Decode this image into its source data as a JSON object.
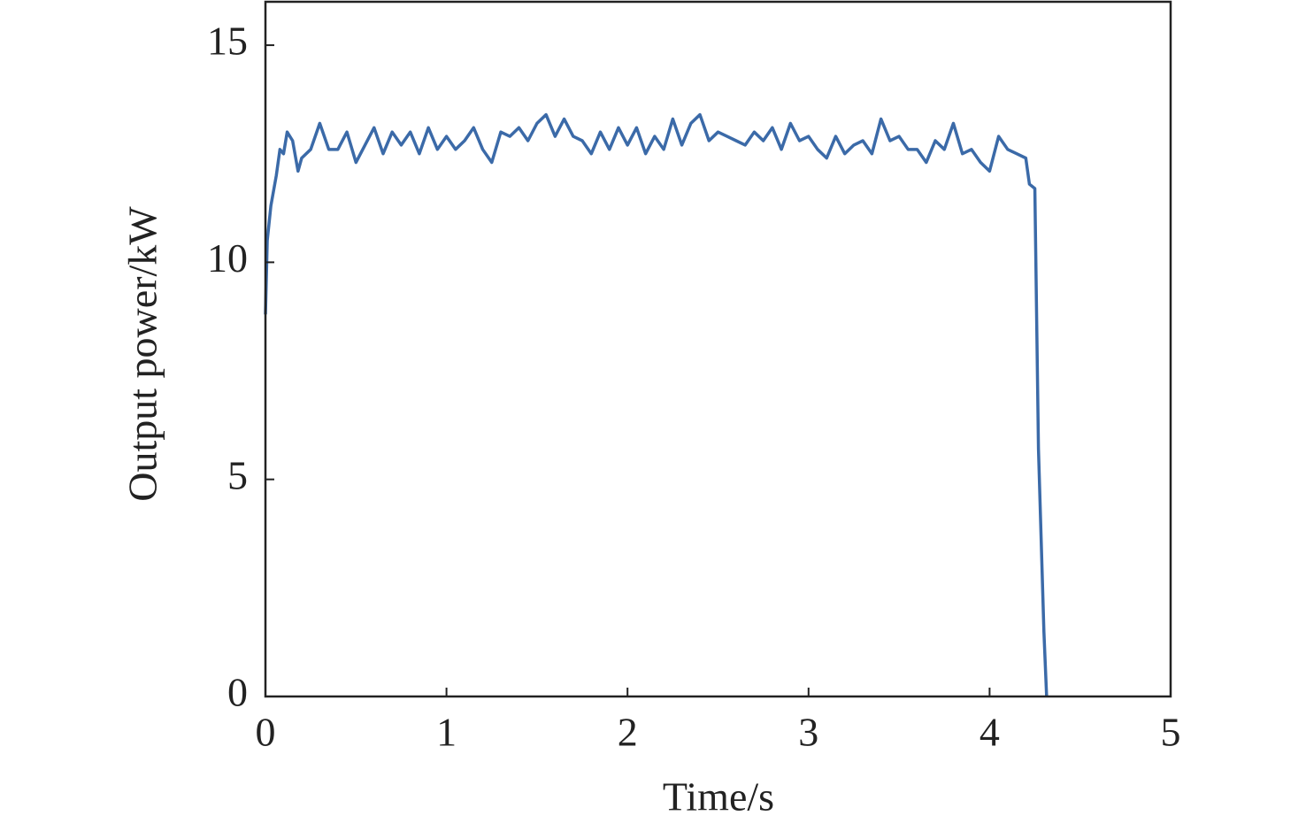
{
  "chart_data": {
    "type": "line",
    "xlabel": "Time/s",
    "ylabel": "Output power/kW",
    "xlim": [
      0,
      5
    ],
    "ylim": [
      0,
      16
    ],
    "xticks": [
      0,
      1,
      2,
      3,
      4,
      5
    ],
    "yticks": [
      0,
      5,
      10,
      15
    ],
    "series": [
      {
        "color": "#3b6aa8",
        "x": [
          0,
          0.01,
          0.03,
          0.06,
          0.08,
          0.1,
          0.12,
          0.15,
          0.18,
          0.2,
          0.25,
          0.3,
          0.35,
          0.4,
          0.45,
          0.5,
          0.55,
          0.6,
          0.65,
          0.7,
          0.75,
          0.8,
          0.85,
          0.9,
          0.95,
          1.0,
          1.05,
          1.1,
          1.15,
          1.2,
          1.25,
          1.3,
          1.35,
          1.4,
          1.45,
          1.5,
          1.55,
          1.6,
          1.65,
          1.7,
          1.75,
          1.8,
          1.85,
          1.9,
          1.95,
          2.0,
          2.05,
          2.1,
          2.15,
          2.2,
          2.25,
          2.3,
          2.35,
          2.4,
          2.45,
          2.5,
          2.55,
          2.6,
          2.65,
          2.7,
          2.75,
          2.8,
          2.85,
          2.9,
          2.95,
          3.0,
          3.05,
          3.1,
          3.15,
          3.2,
          3.25,
          3.3,
          3.35,
          3.4,
          3.45,
          3.5,
          3.55,
          3.6,
          3.65,
          3.7,
          3.75,
          3.8,
          3.85,
          3.9,
          3.95,
          4.0,
          4.05,
          4.1,
          4.15,
          4.2,
          4.22,
          4.25,
          4.27,
          4.3,
          4.315
        ],
        "values": [
          8.8,
          10.5,
          11.3,
          12.0,
          12.6,
          12.5,
          13.0,
          12.8,
          12.1,
          12.4,
          12.6,
          13.2,
          12.6,
          12.6,
          13.0,
          12.3,
          12.7,
          13.1,
          12.5,
          13.0,
          12.7,
          13.0,
          12.5,
          13.1,
          12.6,
          12.9,
          12.6,
          12.8,
          13.1,
          12.6,
          12.3,
          13.0,
          12.9,
          13.1,
          12.8,
          13.2,
          13.4,
          12.9,
          13.3,
          12.9,
          12.8,
          12.5,
          13.0,
          12.6,
          13.1,
          12.7,
          13.1,
          12.5,
          12.9,
          12.6,
          13.3,
          12.7,
          13.2,
          13.4,
          12.8,
          13.0,
          12.9,
          12.8,
          12.7,
          13.0,
          12.8,
          13.1,
          12.6,
          13.2,
          12.8,
          12.9,
          12.6,
          12.4,
          12.9,
          12.5,
          12.7,
          12.8,
          12.5,
          13.3,
          12.8,
          12.9,
          12.6,
          12.6,
          12.3,
          12.8,
          12.6,
          13.2,
          12.5,
          12.6,
          12.3,
          12.1,
          12.9,
          12.6,
          12.5,
          12.4,
          11.8,
          11.7,
          5.7,
          1.5,
          0
        ]
      }
    ]
  }
}
